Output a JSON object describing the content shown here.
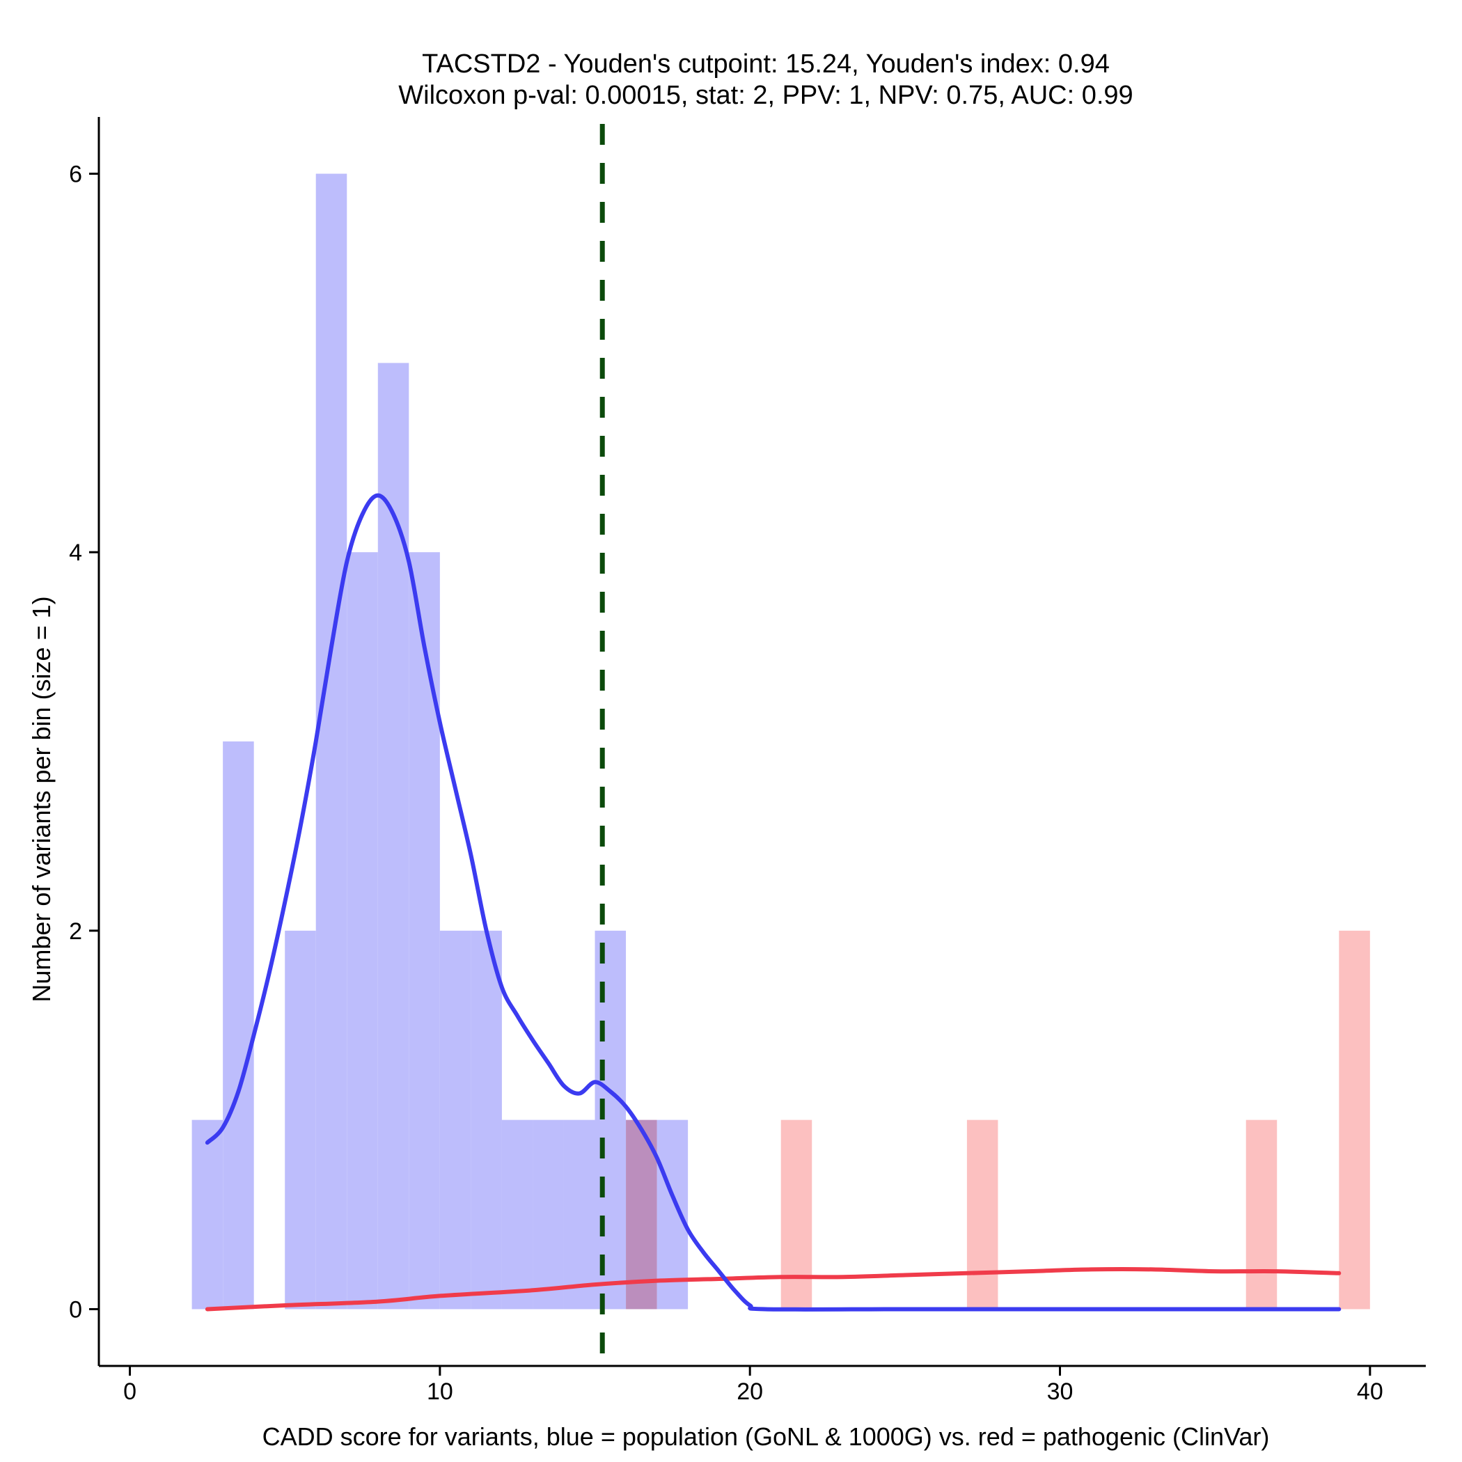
{
  "chart_data": {
    "type": "bar",
    "title_lines": [
      "TACSTD2 - Youden's cutpoint: 15.24, Youden's index: 0.94",
      "Wilcoxon p-val: 0.00015, stat: 2, PPV: 1, NPV: 0.75, AUC: 0.99"
    ],
    "xlabel": "CADD score for variants, blue = population (GoNL & 1000G) vs. red = pathogenic (ClinVar)",
    "ylabel": "Number of variants per bin (size = 1)",
    "xlim": [
      -1,
      41.8
    ],
    "ylim": [
      -0.3,
      6.3
    ],
    "x_ticks": [
      0,
      10,
      20,
      30,
      40
    ],
    "y_ticks": [
      0,
      2,
      4,
      6
    ],
    "bin_width": 1,
    "cutpoint": 15.24,
    "colors": {
      "population_bar": "#bdbdfc",
      "pathogenic_bar": "#fcbdbd",
      "population_density": "#3b3bf0",
      "pathogenic_density": "#f03b4a",
      "cutpoint_line": "#0b4a0b"
    },
    "series": [
      {
        "name": "population (GoNL & 1000G)",
        "bins": [
          {
            "start": 2,
            "count": 1
          },
          {
            "start": 3,
            "count": 3
          },
          {
            "start": 5,
            "count": 2
          },
          {
            "start": 6,
            "count": 6
          },
          {
            "start": 7,
            "count": 4
          },
          {
            "start": 8,
            "count": 5
          },
          {
            "start": 9,
            "count": 4
          },
          {
            "start": 10,
            "count": 2
          },
          {
            "start": 11,
            "count": 2
          },
          {
            "start": 12,
            "count": 1
          },
          {
            "start": 13,
            "count": 1
          },
          {
            "start": 14,
            "count": 1
          },
          {
            "start": 15,
            "count": 2
          },
          {
            "start": 16,
            "count": 1
          },
          {
            "start": 17,
            "count": 1
          }
        ]
      },
      {
        "name": "pathogenic (ClinVar)",
        "bins": [
          {
            "start": 16,
            "count": 1
          },
          {
            "start": 21,
            "count": 1
          },
          {
            "start": 27,
            "count": 1
          },
          {
            "start": 36,
            "count": 1
          },
          {
            "start": 39,
            "count": 2
          }
        ]
      }
    ],
    "density_population": [
      [
        2.5,
        0.88
      ],
      [
        3.0,
        0.96
      ],
      [
        3.5,
        1.15
      ],
      [
        4.0,
        1.45
      ],
      [
        4.5,
        1.78
      ],
      [
        5.0,
        2.15
      ],
      [
        5.5,
        2.55
      ],
      [
        6.0,
        3.0
      ],
      [
        6.5,
        3.5
      ],
      [
        7.0,
        3.95
      ],
      [
        7.5,
        4.2
      ],
      [
        8.0,
        4.3
      ],
      [
        8.5,
        4.2
      ],
      [
        9.0,
        3.95
      ],
      [
        9.5,
        3.5
      ],
      [
        10.0,
        3.1
      ],
      [
        10.5,
        2.75
      ],
      [
        11.0,
        2.4
      ],
      [
        11.5,
        2.0
      ],
      [
        12.0,
        1.7
      ],
      [
        12.5,
        1.55
      ],
      [
        13.0,
        1.42
      ],
      [
        13.5,
        1.3
      ],
      [
        14.0,
        1.18
      ],
      [
        14.5,
        1.14
      ],
      [
        15.0,
        1.2
      ],
      [
        15.5,
        1.15
      ],
      [
        16.0,
        1.07
      ],
      [
        16.5,
        0.95
      ],
      [
        17.0,
        0.8
      ],
      [
        17.5,
        0.6
      ],
      [
        18.0,
        0.42
      ],
      [
        18.5,
        0.3
      ],
      [
        19.0,
        0.2
      ],
      [
        19.5,
        0.1
      ],
      [
        20.0,
        0.02
      ],
      [
        20.5,
        0.0
      ],
      [
        25.0,
        0.0
      ],
      [
        30.0,
        0.0
      ],
      [
        35.0,
        0.0
      ],
      [
        39.0,
        0.0
      ]
    ],
    "density_pathogenic": [
      [
        2.5,
        0.0
      ],
      [
        5.0,
        0.02
      ],
      [
        8.0,
        0.04
      ],
      [
        10.0,
        0.07
      ],
      [
        13.0,
        0.1
      ],
      [
        15.0,
        0.13
      ],
      [
        17.0,
        0.15
      ],
      [
        19.0,
        0.16
      ],
      [
        21.0,
        0.17
      ],
      [
        23.0,
        0.17
      ],
      [
        25.0,
        0.18
      ],
      [
        27.0,
        0.19
      ],
      [
        29.0,
        0.2
      ],
      [
        31.0,
        0.21
      ],
      [
        33.0,
        0.21
      ],
      [
        35.0,
        0.2
      ],
      [
        37.0,
        0.2
      ],
      [
        39.0,
        0.19
      ]
    ]
  }
}
